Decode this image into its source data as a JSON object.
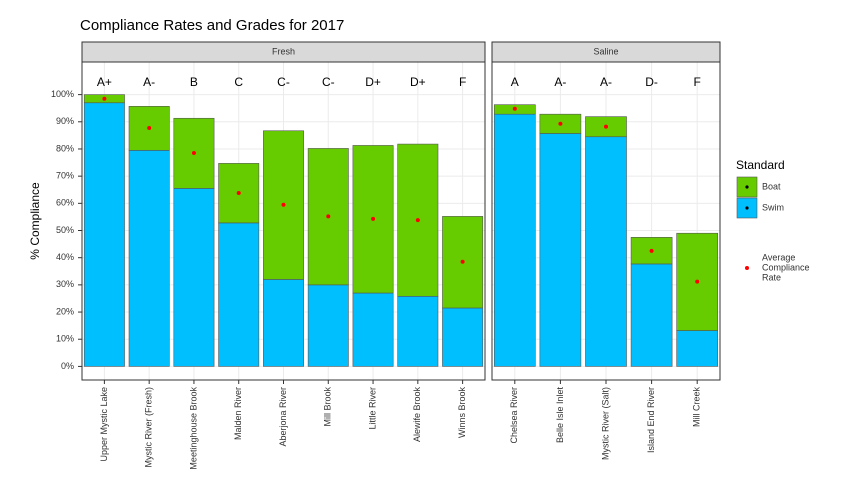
{
  "chart_data": {
    "type": "stacked_bar",
    "title": "Compliance Rates and Grades for 2017",
    "y_label": "% Compliance",
    "ylim": [
      -5,
      112
    ],
    "yticks": [
      {
        "value": 0,
        "label": "0%"
      },
      {
        "value": 10,
        "label": "10%"
      },
      {
        "value": 20,
        "label": "20%"
      },
      {
        "value": 30,
        "label": "30%"
      },
      {
        "value": 40,
        "label": "40%"
      },
      {
        "value": 50,
        "label": "50%"
      },
      {
        "value": 60,
        "label": "60%"
      },
      {
        "value": 70,
        "label": "70%"
      },
      {
        "value": 80,
        "label": "80%"
      },
      {
        "value": 90,
        "label": "90%"
      },
      {
        "value": 100,
        "label": "100%"
      }
    ],
    "grid": true,
    "legend_title": "Standard",
    "series": [
      {
        "name": "Boat",
        "color": "#66cc00"
      },
      {
        "name": "Swim",
        "color": "#00bfff"
      }
    ],
    "average_label": [
      "Average",
      "Compliance",
      "Rate"
    ],
    "average_color": "#ff0000",
    "facets": [
      {
        "title": "Fresh",
        "categories": [
          "Upper Mystic Lake",
          "Mystic River (Fresh)",
          "Meetinghouse Brook",
          "Malden River",
          "Aberjona River",
          "Mill Brook",
          "Little River",
          "Alewife Brook",
          "Winns Brook"
        ],
        "grades": [
          "A+",
          "A-",
          "B",
          "C",
          "C-",
          "C-",
          "D+",
          "D+",
          "F"
        ],
        "boat": [
          3,
          16.2,
          25.8,
          21.9,
          54.7,
          50.2,
          54.3,
          56,
          33.7
        ],
        "swim": [
          97,
          79.5,
          65.5,
          52.8,
          32,
          30,
          27,
          25.8,
          21.5
        ],
        "average": [
          98.5,
          87.7,
          78.5,
          63.8,
          59.5,
          55.2,
          54.3,
          53.8,
          38.5
        ]
      },
      {
        "title": "Saline",
        "categories": [
          "Chelsea River",
          "Belle Isle Inlet",
          "Mystic River (Salt)",
          "Island End River",
          "Mill Creek"
        ],
        "grades": [
          "A",
          "A-",
          "A-",
          "D-",
          "F"
        ],
        "boat": [
          3.5,
          7.1,
          7.4,
          9.8,
          35.8
        ],
        "swim": [
          92.8,
          85.7,
          84.5,
          37.7,
          13.2
        ],
        "average": [
          94.8,
          89.3,
          88.2,
          42.5,
          31.2
        ]
      }
    ]
  }
}
